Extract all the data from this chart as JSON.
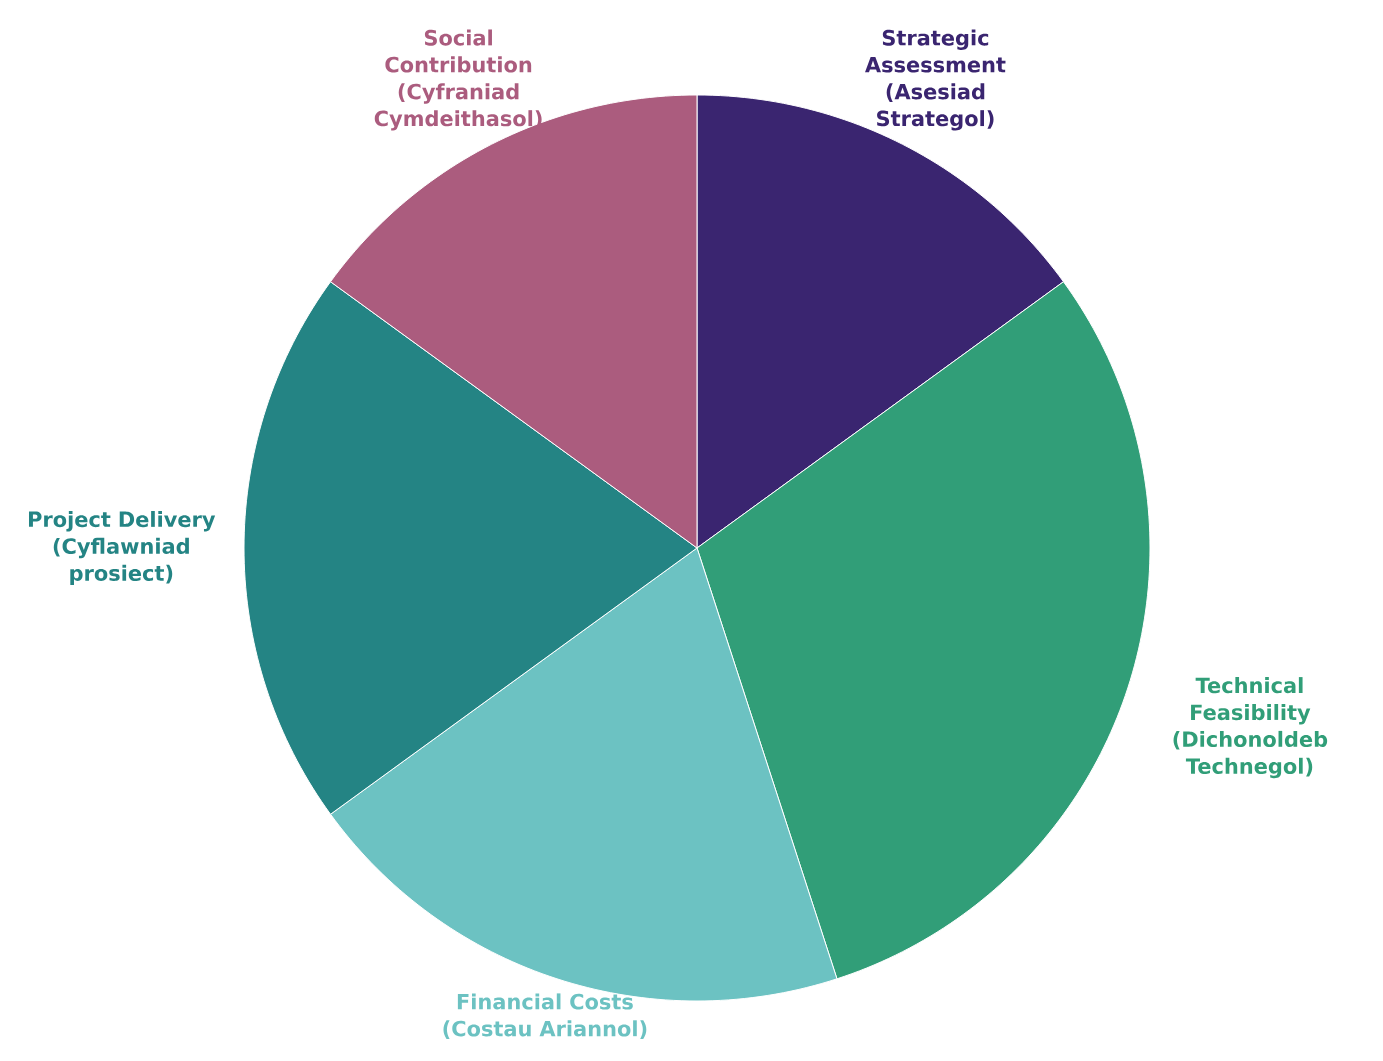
{
  "chart_data": {
    "type": "pie",
    "categories": [
      "Strategic Assessment (Asesiad Strategol)",
      "Technical Feasibility (Dichonoldeb Technegol)",
      "Financial Costs (Costau Ariannol)",
      "Project Delivery (Cyflawniad prosiect)",
      "Social Contribution (Cyfraniad Cymdeithasol)"
    ],
    "values": [
      15,
      30,
      20,
      20,
      15
    ],
    "colors": [
      "#3a2570",
      "#319e78",
      "#6cc2c2",
      "#248484",
      "#ab5c7e"
    ]
  }
}
